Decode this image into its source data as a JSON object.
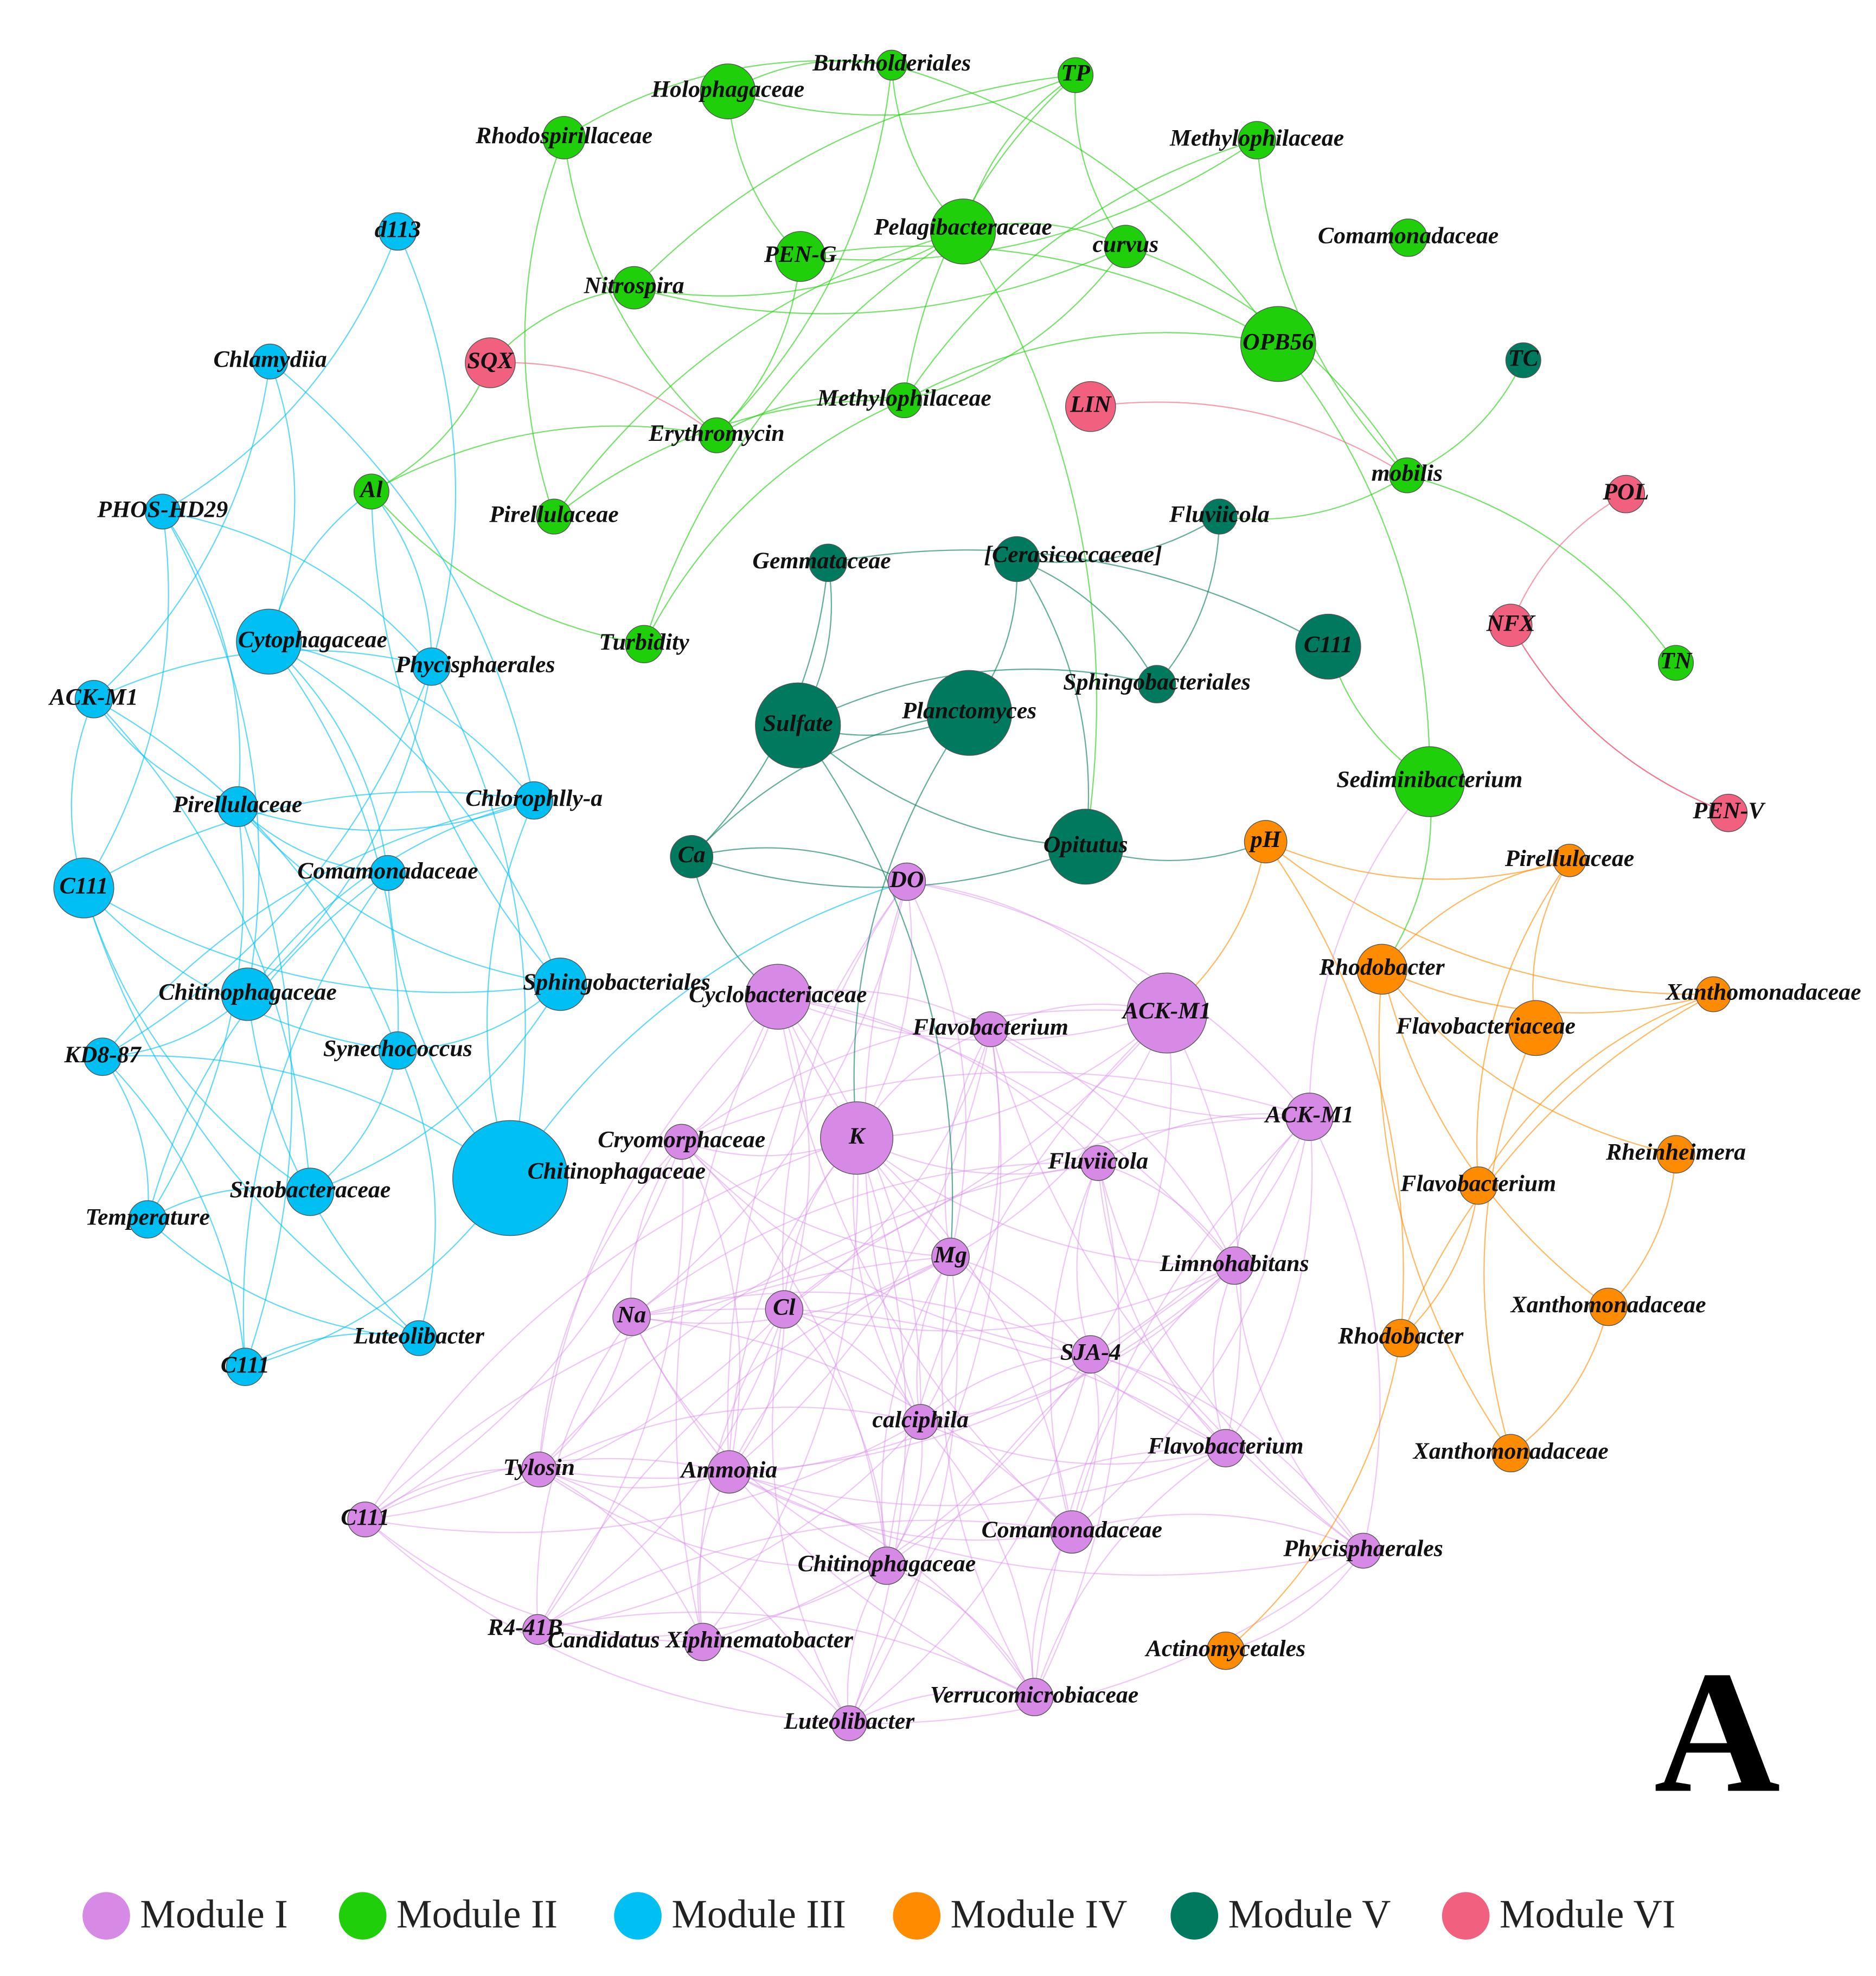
{
  "modules": [
    {
      "label": "Module I",
      "color": "#d68ae6",
      "nodes": [
        "DO",
        "Cyclobacteriaceae",
        "ACK-M1",
        "Flavobacterium",
        "ACK-M1",
        "Cryomorphaceae",
        "K",
        "Fluviicola",
        "Mg",
        "Limnohabitans",
        "Na",
        "Cl",
        "SJA-4",
        "calciphila",
        "Tylosin",
        "Ammonia",
        "Flavobacterium",
        "C111",
        "Comamonadaceae",
        "Chitinophagaceae",
        "Phycisphaerales",
        "R4-41B",
        "Candidatus Xiphinematobacter",
        "Verrucomicrobiaceae",
        "Luteolibacter"
      ]
    },
    {
      "label": "Module II",
      "color": "#1ecf0a",
      "nodes": [
        "Burkholderiales",
        "Holophagaceae",
        "TP",
        "Rhodospirillaceae",
        "Methylophilaceae",
        "Pelagibacteraceae",
        "PEN-G",
        "curvus",
        "Comamonadaceae",
        "Nitrospira",
        "OPB56",
        "Methylophilaceae",
        "Erythromycin",
        "Al",
        "Pirellulaceae",
        "mobilis",
        "Turbidity",
        "TN",
        "Sediminibacterium"
      ]
    },
    {
      "label": "Module III",
      "color": "#00bff3",
      "nodes": [
        "d113",
        "Chlamydiia",
        "PHOS-HD29",
        "Cytophagaceae",
        "Phycisphaerales",
        "ACK-M1",
        "Pirellulaceae",
        "Chlorophlly-a",
        "C111",
        "Comamonadaceae",
        "Chitinophagaceae",
        "Sphingobacteriales",
        "KD8-87",
        "Synechococcus",
        "Chitinophagaceae",
        "Sinobacteraceae",
        "Temperature",
        "Luteolibacter",
        "C111"
      ]
    },
    {
      "label": "Module IV",
      "color": "#ff8c00",
      "nodes": [
        "pH",
        "Pirellulaceae",
        "Rhodobacter",
        "Xanthomonadaceae",
        "Flavobacteriaceae",
        "Rheinheimera",
        "Flavobacterium",
        "Xanthomonadaceae",
        "Rhodobacter",
        "Xanthomonadaceae",
        "Actinomycetales"
      ]
    },
    {
      "label": "Module V",
      "color": "#007a5e",
      "nodes": [
        "TC",
        "Fluviicola",
        "Gemmataceae",
        "[Cerasicoccaceae]",
        "C111",
        "Sphingobacteriales",
        "Sulfate",
        "Planctomyces",
        "Ca",
        "Opitutus"
      ]
    },
    {
      "label": "Module VI",
      "color": "#f2607f",
      "nodes": [
        "SQX",
        "LIN",
        "POL",
        "NFX",
        "PEN-V"
      ]
    }
  ],
  "panel_label": "A"
}
